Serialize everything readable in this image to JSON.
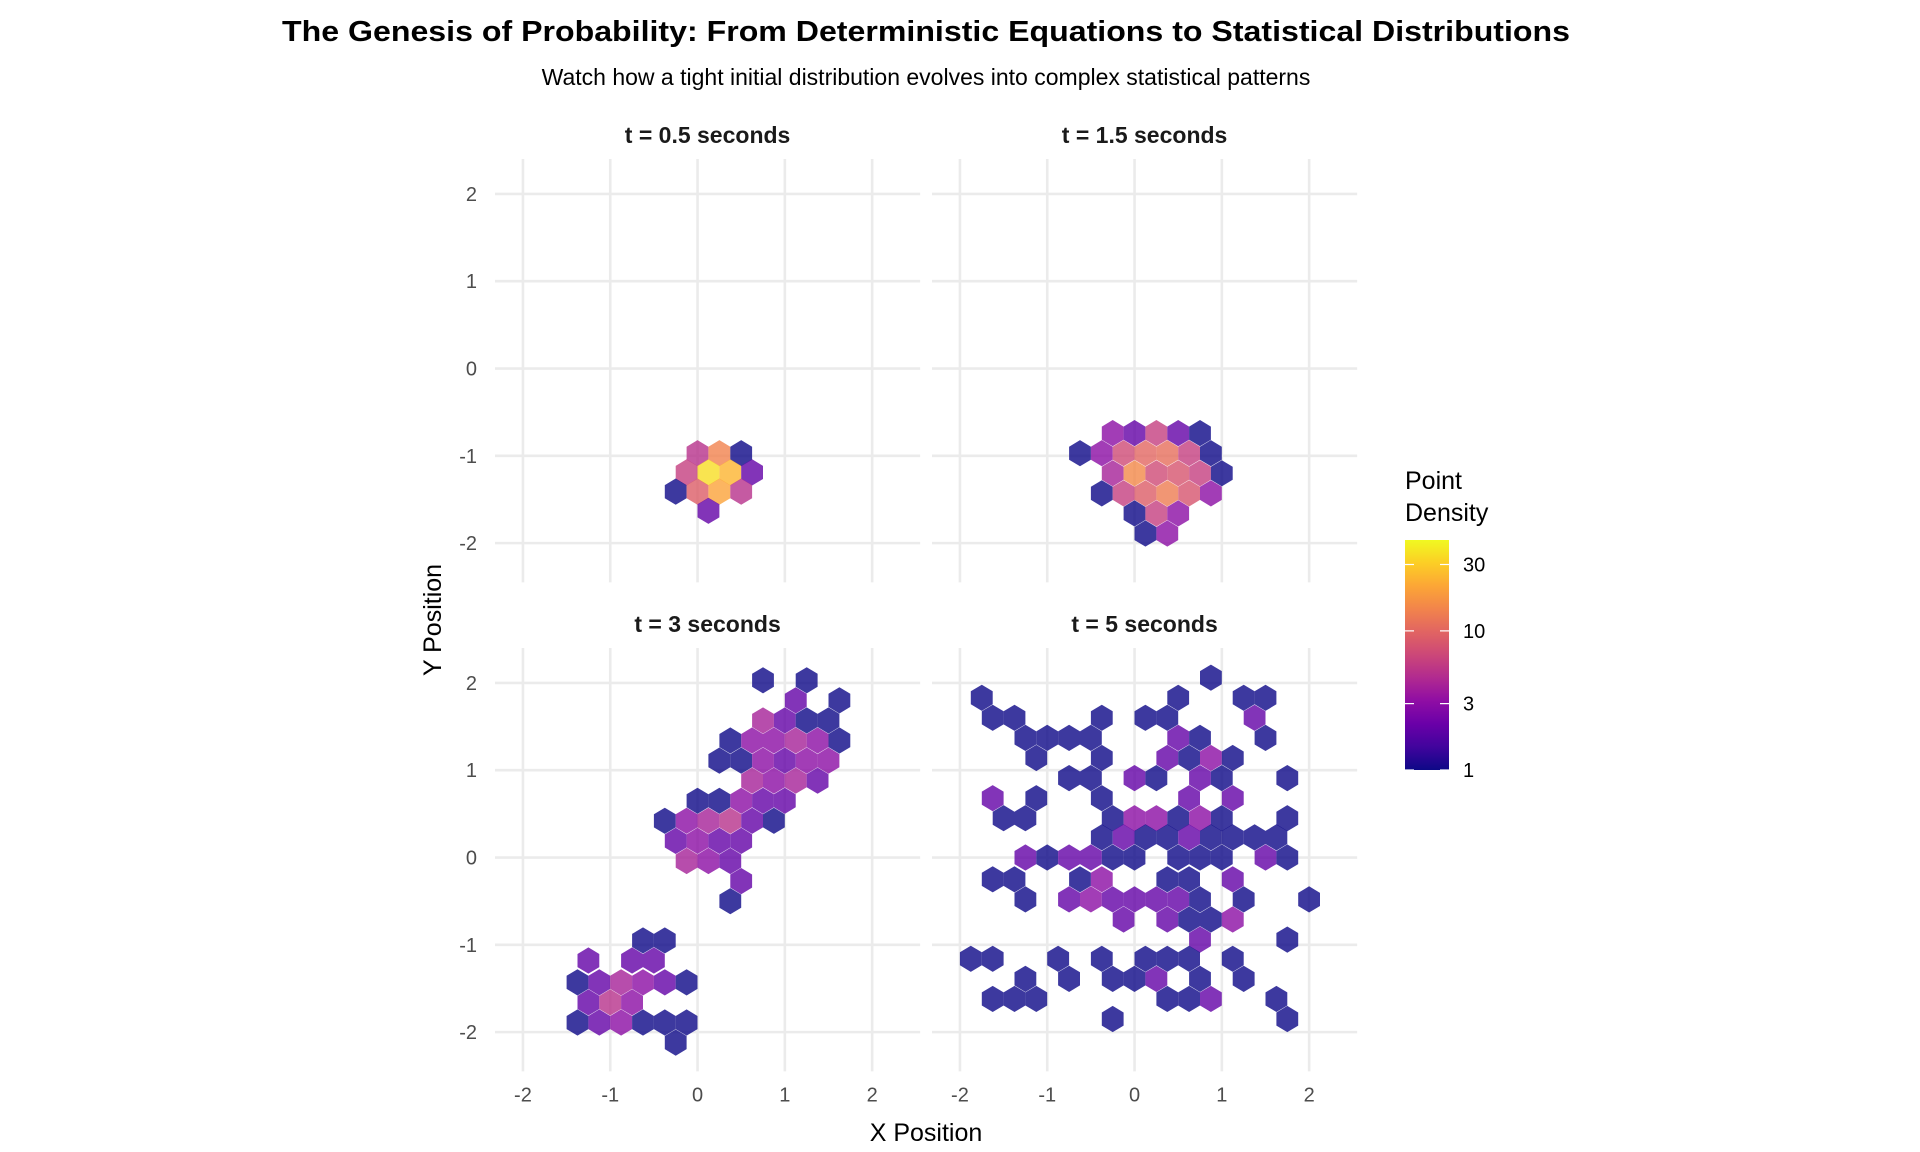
{
  "title": "The Genesis of Probability: From Deterministic Equations to Statistical Distributions",
  "subtitle": "Watch how a tight initial distribution evolves into complex statistical patterns",
  "chart_data": {
    "type": "hexbin",
    "xlabel": "X Position",
    "ylabel": "Y Position",
    "xlim": [
      -2.32,
      2.55
    ],
    "ylim": [
      -2.45,
      2.4
    ],
    "x_ticks": [
      -2,
      -1,
      0,
      1,
      2
    ],
    "y_ticks": [
      -2,
      -1,
      0,
      1,
      2
    ],
    "x_tick_labels": [
      "-2",
      "-1",
      "0",
      "1",
      "2"
    ],
    "y_tick_labels": [
      "-2",
      "-1",
      "0",
      "1",
      "2"
    ],
    "grid": true,
    "fill_alpha": 0.8,
    "legend": {
      "title_line1": "Point",
      "title_line2": "Density",
      "scale": "log10",
      "colormap": "plasma",
      "range": [
        1,
        45
      ],
      "breaks": [
        1,
        3,
        10,
        30
      ],
      "break_labels": [
        "1",
        "3",
        "10",
        "30"
      ],
      "placement": "right",
      "colors": [
        "#0d0887",
        "#41049d",
        "#6a00a8",
        "#8f0da4",
        "#b12a90",
        "#cc4778",
        "#e16462",
        "#f2844b",
        "#fca636",
        "#fcce25",
        "#f0f921"
      ]
    },
    "panels": [
      {
        "label": "t = 0.5 seconds",
        "hexes": [
          [
            0,
            -0.97,
            5
          ],
          [
            0.25,
            -0.97,
            14
          ],
          [
            0.5,
            -0.97,
            1
          ],
          [
            -0.125,
            -1.19,
            6
          ],
          [
            0.125,
            -1.19,
            35
          ],
          [
            0.375,
            -1.19,
            24
          ],
          [
            0.625,
            -1.19,
            2
          ],
          [
            -0.25,
            -1.41,
            1
          ],
          [
            0,
            -1.41,
            9
          ],
          [
            0.25,
            -1.41,
            20
          ],
          [
            0.5,
            -1.41,
            5
          ],
          [
            0.125,
            -1.63,
            2
          ]
        ]
      },
      {
        "label": "t = 1.5 seconds",
        "hexes": [
          [
            -0.25,
            -0.74,
            3
          ],
          [
            0,
            -0.74,
            2
          ],
          [
            0.25,
            -0.74,
            6
          ],
          [
            0.5,
            -0.74,
            2
          ],
          [
            0.75,
            -0.74,
            1
          ],
          [
            -0.625,
            -0.97,
            1
          ],
          [
            -0.375,
            -0.97,
            3
          ],
          [
            -0.125,
            -0.97,
            7
          ],
          [
            0.125,
            -0.97,
            10
          ],
          [
            0.375,
            -0.97,
            11
          ],
          [
            0.625,
            -0.97,
            6
          ],
          [
            0.875,
            -0.97,
            1
          ],
          [
            -0.25,
            -1.2,
            4
          ],
          [
            0,
            -1.2,
            15
          ],
          [
            0.25,
            -1.2,
            7
          ],
          [
            0.5,
            -1.2,
            8
          ],
          [
            0.75,
            -1.2,
            6
          ],
          [
            1.0,
            -1.2,
            1
          ],
          [
            -0.375,
            -1.43,
            1
          ],
          [
            -0.125,
            -1.43,
            6
          ],
          [
            0.125,
            -1.43,
            9
          ],
          [
            0.375,
            -1.43,
            13
          ],
          [
            0.625,
            -1.43,
            8
          ],
          [
            0.875,
            -1.43,
            3
          ],
          [
            0,
            -1.66,
            1
          ],
          [
            0.25,
            -1.66,
            6
          ],
          [
            0.5,
            -1.66,
            3
          ],
          [
            0.125,
            -1.89,
            1
          ],
          [
            0.375,
            -1.89,
            3
          ]
        ]
      },
      {
        "label": "t = 3 seconds",
        "hexes": [
          [
            0.75,
            2.03,
            1
          ],
          [
            1.25,
            2.03,
            1
          ],
          [
            1.125,
            1.8,
            2
          ],
          [
            1.625,
            1.8,
            1
          ],
          [
            0.75,
            1.57,
            4
          ],
          [
            1.0,
            1.57,
            2
          ],
          [
            1.25,
            1.57,
            1
          ],
          [
            1.5,
            1.57,
            1
          ],
          [
            0.375,
            1.34,
            1
          ],
          [
            0.625,
            1.34,
            3
          ],
          [
            0.875,
            1.34,
            3
          ],
          [
            1.125,
            1.34,
            4
          ],
          [
            1.375,
            1.34,
            3
          ],
          [
            1.625,
            1.34,
            1
          ],
          [
            0.25,
            1.11,
            1
          ],
          [
            0.5,
            1.11,
            1
          ],
          [
            0.75,
            1.11,
            3
          ],
          [
            1.0,
            1.11,
            2
          ],
          [
            1.25,
            1.11,
            3
          ],
          [
            1.5,
            1.11,
            3
          ],
          [
            0.625,
            0.88,
            4
          ],
          [
            0.875,
            0.88,
            3
          ],
          [
            1.125,
            0.88,
            4
          ],
          [
            1.375,
            0.88,
            2
          ],
          [
            0,
            0.65,
            1
          ],
          [
            0.25,
            0.65,
            1
          ],
          [
            0.5,
            0.65,
            3
          ],
          [
            0.75,
            0.65,
            2
          ],
          [
            1.0,
            0.65,
            2
          ],
          [
            -0.375,
            0.42,
            1
          ],
          [
            -0.125,
            0.42,
            3
          ],
          [
            0.125,
            0.42,
            4
          ],
          [
            0.375,
            0.42,
            5
          ],
          [
            0.625,
            0.42,
            2
          ],
          [
            0.875,
            0.42,
            1
          ],
          [
            -0.25,
            0.19,
            2
          ],
          [
            0,
            0.19,
            3
          ],
          [
            0.25,
            0.19,
            2
          ],
          [
            0.5,
            0.19,
            2
          ],
          [
            -0.125,
            -0.04,
            4
          ],
          [
            0.125,
            -0.04,
            3
          ],
          [
            0.375,
            -0.04,
            2
          ],
          [
            0.5,
            -0.27,
            2
          ],
          [
            0.375,
            -0.5,
            1
          ],
          [
            -0.625,
            -0.95,
            1
          ],
          [
            -0.375,
            -0.95,
            1
          ],
          [
            -1.25,
            -1.18,
            2
          ],
          [
            -0.75,
            -1.18,
            2
          ],
          [
            -0.5,
            -1.18,
            2
          ],
          [
            -1.375,
            -1.43,
            1
          ],
          [
            -1.125,
            -1.43,
            2
          ],
          [
            -0.875,
            -1.43,
            4
          ],
          [
            -0.625,
            -1.43,
            3
          ],
          [
            -0.375,
            -1.43,
            2
          ],
          [
            -0.125,
            -1.43,
            1
          ],
          [
            -1.25,
            -1.66,
            2
          ],
          [
            -1.0,
            -1.66,
            5
          ],
          [
            -0.75,
            -1.66,
            3
          ],
          [
            -1.375,
            -1.89,
            1
          ],
          [
            -1.125,
            -1.89,
            2
          ],
          [
            -0.875,
            -1.89,
            3
          ],
          [
            -0.625,
            -1.89,
            1
          ],
          [
            -0.375,
            -1.89,
            1
          ],
          [
            -0.125,
            -1.89,
            1
          ],
          [
            -0.25,
            -2.12,
            1
          ]
        ]
      },
      {
        "label": "t = 5 seconds",
        "hexes": [
          [
            0.875,
            2.06,
            1
          ],
          [
            -1.75,
            1.83,
            1
          ],
          [
            0.5,
            1.83,
            1
          ],
          [
            1.25,
            1.83,
            1
          ],
          [
            1.5,
            1.83,
            1
          ],
          [
            -1.625,
            1.6,
            1
          ],
          [
            -1.375,
            1.6,
            1
          ],
          [
            -0.375,
            1.6,
            1
          ],
          [
            0.125,
            1.6,
            1
          ],
          [
            0.375,
            1.6,
            1
          ],
          [
            1.375,
            1.6,
            2
          ],
          [
            -1.25,
            1.37,
            1
          ],
          [
            -1.0,
            1.37,
            1
          ],
          [
            -0.75,
            1.37,
            1
          ],
          [
            -0.5,
            1.37,
            1
          ],
          [
            0.5,
            1.37,
            2
          ],
          [
            0.75,
            1.37,
            1
          ],
          [
            1.5,
            1.37,
            1
          ],
          [
            -1.125,
            1.14,
            1
          ],
          [
            -0.375,
            1.14,
            1
          ],
          [
            0.375,
            1.14,
            2
          ],
          [
            0.625,
            1.14,
            1
          ],
          [
            0.875,
            1.14,
            3
          ],
          [
            1.125,
            1.14,
            1
          ],
          [
            -0.75,
            0.91,
            1
          ],
          [
            -0.5,
            0.91,
            1
          ],
          [
            0,
            0.91,
            2
          ],
          [
            0.25,
            0.91,
            1
          ],
          [
            0.75,
            0.91,
            2
          ],
          [
            1.0,
            0.91,
            1
          ],
          [
            1.75,
            0.91,
            1
          ],
          [
            -1.625,
            0.68,
            2
          ],
          [
            -1.125,
            0.68,
            1
          ],
          [
            -0.375,
            0.68,
            1
          ],
          [
            0.625,
            0.68,
            2
          ],
          [
            1.125,
            0.68,
            2
          ],
          [
            -1.5,
            0.45,
            1
          ],
          [
            -1.25,
            0.45,
            1
          ],
          [
            -0.25,
            0.45,
            1
          ],
          [
            0,
            0.45,
            3
          ],
          [
            0.25,
            0.45,
            3
          ],
          [
            0.5,
            0.45,
            1
          ],
          [
            0.75,
            0.45,
            3
          ],
          [
            1.0,
            0.45,
            1
          ],
          [
            1.75,
            0.45,
            1
          ],
          [
            -0.375,
            0.23,
            1
          ],
          [
            -0.125,
            0.23,
            2
          ],
          [
            0.125,
            0.23,
            1
          ],
          [
            0.375,
            0.23,
            1
          ],
          [
            0.625,
            0.23,
            2
          ],
          [
            0.875,
            0.23,
            1
          ],
          [
            1.125,
            0.23,
            1
          ],
          [
            1.375,
            0.23,
            1
          ],
          [
            1.625,
            0.23,
            1
          ],
          [
            -1.25,
            0,
            2
          ],
          [
            -1.0,
            0,
            1
          ],
          [
            -0.75,
            0,
            2
          ],
          [
            -0.5,
            0,
            2
          ],
          [
            -0.25,
            0,
            1
          ],
          [
            0,
            0,
            1
          ],
          [
            0.5,
            0,
            1
          ],
          [
            0.75,
            0,
            1
          ],
          [
            1.0,
            0,
            1
          ],
          [
            1.5,
            0,
            2
          ],
          [
            1.75,
            0,
            1
          ],
          [
            -1.625,
            -0.25,
            1
          ],
          [
            -1.375,
            -0.25,
            1
          ],
          [
            -0.625,
            -0.25,
            1
          ],
          [
            -0.375,
            -0.25,
            3
          ],
          [
            0.375,
            -0.25,
            1
          ],
          [
            0.625,
            -0.25,
            1
          ],
          [
            1.125,
            -0.25,
            2
          ],
          [
            -1.25,
            -0.48,
            1
          ],
          [
            -0.75,
            -0.48,
            2
          ],
          [
            -0.5,
            -0.48,
            3
          ],
          [
            -0.25,
            -0.48,
            2
          ],
          [
            0,
            -0.48,
            2
          ],
          [
            0.25,
            -0.48,
            2
          ],
          [
            0.5,
            -0.48,
            2
          ],
          [
            0.75,
            -0.48,
            1
          ],
          [
            1.25,
            -0.48,
            1
          ],
          [
            2.0,
            -0.48,
            1
          ],
          [
            -0.125,
            -0.71,
            2
          ],
          [
            0.375,
            -0.71,
            2
          ],
          [
            0.625,
            -0.71,
            1
          ],
          [
            0.875,
            -0.71,
            1
          ],
          [
            1.125,
            -0.71,
            3
          ],
          [
            0.75,
            -0.94,
            2
          ],
          [
            1.75,
            -0.94,
            1
          ],
          [
            -1.875,
            -1.16,
            1
          ],
          [
            -1.625,
            -1.16,
            1
          ],
          [
            -0.875,
            -1.16,
            1
          ],
          [
            -0.375,
            -1.16,
            1
          ],
          [
            0.125,
            -1.16,
            1
          ],
          [
            0.375,
            -1.16,
            1
          ],
          [
            0.625,
            -1.16,
            1
          ],
          [
            1.125,
            -1.16,
            1
          ],
          [
            -1.25,
            -1.39,
            1
          ],
          [
            -0.75,
            -1.39,
            1
          ],
          [
            -0.25,
            -1.39,
            1
          ],
          [
            0,
            -1.39,
            1
          ],
          [
            0.25,
            -1.39,
            2
          ],
          [
            0.75,
            -1.39,
            1
          ],
          [
            1.25,
            -1.39,
            1
          ],
          [
            -1.625,
            -1.62,
            1
          ],
          [
            -1.375,
            -1.62,
            1
          ],
          [
            -1.125,
            -1.62,
            1
          ],
          [
            0.375,
            -1.62,
            1
          ],
          [
            0.625,
            -1.62,
            1
          ],
          [
            0.875,
            -1.62,
            2
          ],
          [
            1.625,
            -1.62,
            1
          ],
          [
            -0.25,
            -1.85,
            1
          ],
          [
            1.75,
            -1.85,
            1
          ]
        ]
      }
    ]
  }
}
